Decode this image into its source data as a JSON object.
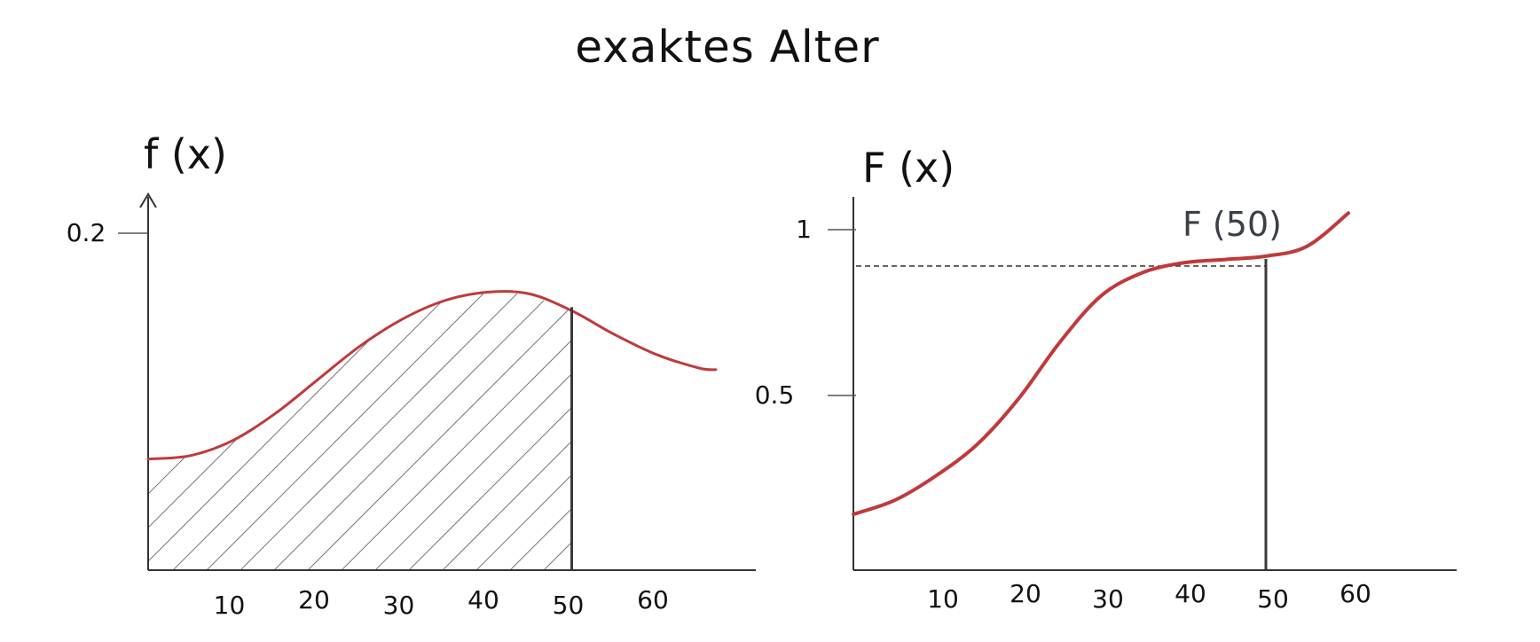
{
  "page": {
    "title": "exaktes Alter"
  },
  "colors": {
    "curve": "#c0393b",
    "axis": "#333333",
    "marker": "#3a3a3a"
  },
  "chart_data": [
    {
      "type": "area",
      "label": "f (x)",
      "x_ticks": [
        "10",
        "20",
        "30",
        "40",
        "50",
        "60"
      ],
      "y_ticks": [
        "0.2"
      ],
      "xlim": [
        0,
        68
      ],
      "ylim": [
        0,
        0.23
      ],
      "grid": false,
      "series": [
        {
          "x": [
            0,
            5,
            10,
            15,
            20,
            25,
            30,
            35,
            40,
            45,
            50,
            55,
            60,
            65,
            67
          ],
          "y": [
            0.066,
            0.068,
            0.077,
            0.093,
            0.113,
            0.133,
            0.149,
            0.16,
            0.165,
            0.164,
            0.154,
            0.14,
            0.128,
            0.12,
            0.119
          ]
        }
      ],
      "shaded_range": [
        0,
        50
      ],
      "vertical_marker_x": 50
    },
    {
      "type": "line",
      "label": "F (x)",
      "annotation": "F (50)",
      "x_ticks": [
        "10",
        "20",
        "30",
        "40",
        "50",
        "60"
      ],
      "y_ticks": [
        "1",
        "0.5"
      ],
      "xlim": [
        0,
        70
      ],
      "ylim": [
        0,
        1.1
      ],
      "grid": false,
      "series": [
        {
          "x": [
            0,
            5,
            10,
            15,
            20,
            25,
            30,
            35,
            40,
            45,
            50,
            55,
            60
          ],
          "y": [
            0.16,
            0.2,
            0.27,
            0.36,
            0.49,
            0.66,
            0.8,
            0.87,
            0.9,
            0.91,
            0.92,
            0.95,
            1.05
          ]
        }
      ],
      "vertical_marker_x": 50,
      "reference_level": 0.92
    }
  ]
}
